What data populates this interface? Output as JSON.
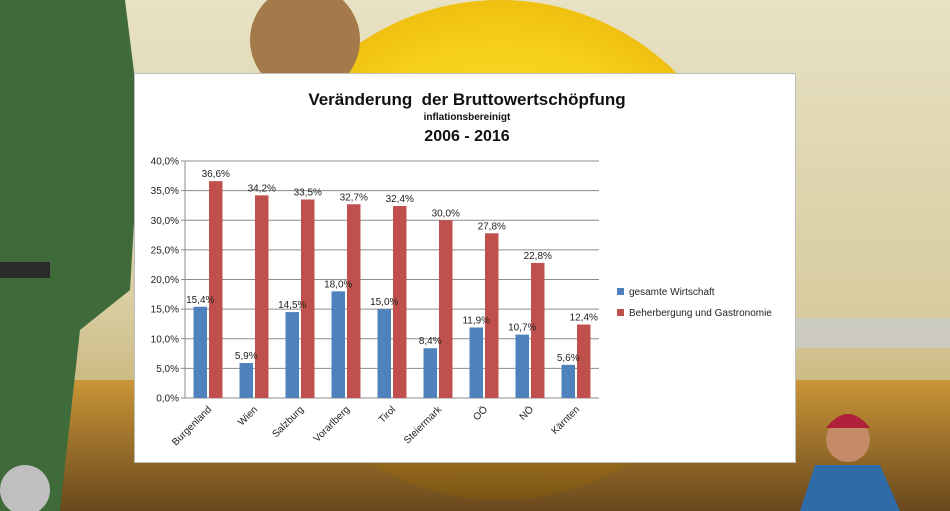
{
  "colors": {
    "series_1": "#4f81bd",
    "series_2": "#c0504d",
    "gridline": "#8c8c8c",
    "panel_bg": "#ffffff",
    "sun": "#f7d51a",
    "sky": "#d9d2b0"
  },
  "chart_data": {
    "type": "bar",
    "title": "Veränderung  der Bruttowertschöpfung",
    "subtitle": "inflationsbereinigt",
    "period": "2006 - 2016",
    "xlabel": "",
    "ylabel": "",
    "ylim": [
      0,
      40
    ],
    "y_ticks": [
      "0,0%",
      "5,0%",
      "10,0%",
      "15,0%",
      "20,0%",
      "25,0%",
      "30,0%",
      "35,0%",
      "40,0%"
    ],
    "grid": true,
    "legend_position": "right",
    "categories": [
      "Burgenland",
      "Wien",
      "Salzburg",
      "Vorarlberg",
      "Tirol",
      "Steiermark",
      "OÖ",
      "NÖ",
      "Kärnten"
    ],
    "series": [
      {
        "name": "gesamte Wirtschaft",
        "values": [
          15.4,
          5.9,
          14.5,
          18.0,
          15.0,
          8.4,
          11.9,
          10.7,
          5.6
        ],
        "labels": [
          "15,4%",
          "5,9%",
          "14,5%",
          "18,0%",
          "15,0%",
          "8,4%",
          "11,9%",
          "10,7%",
          "5,6%"
        ]
      },
      {
        "name": "Beherbergung und Gastronomie",
        "values": [
          36.6,
          34.2,
          33.5,
          32.7,
          32.4,
          30.0,
          27.8,
          22.8,
          12.4
        ],
        "labels": [
          "36,6%",
          "34,2%",
          "33,5%",
          "32,7%",
          "32,4%",
          "30,0%",
          "27,8%",
          "22,8%",
          "12,4%"
        ]
      }
    ]
  }
}
